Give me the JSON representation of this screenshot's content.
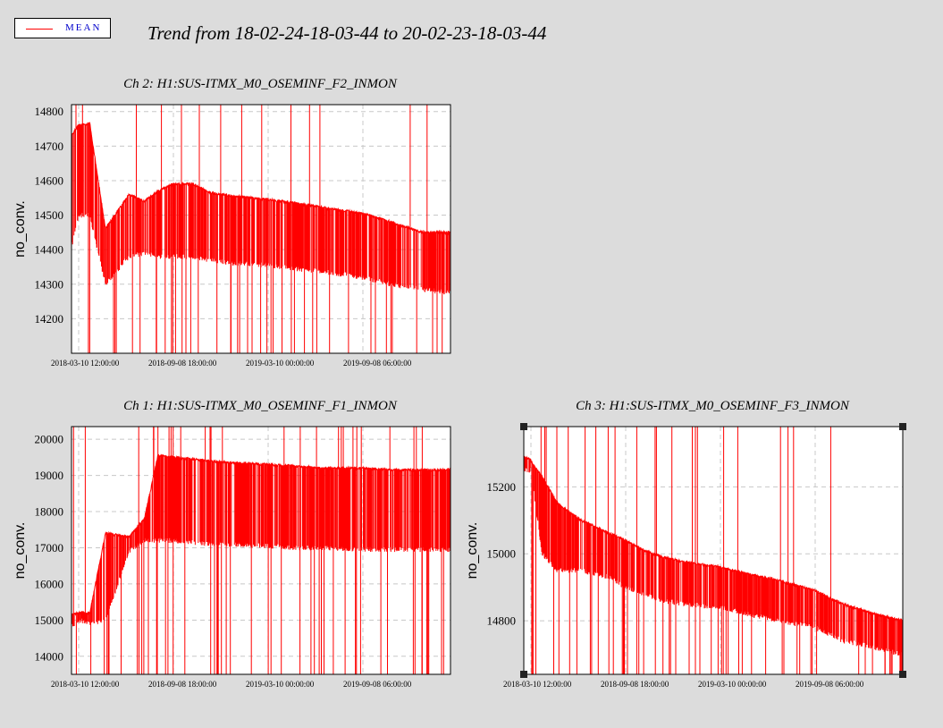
{
  "title": "Trend from 18-02-24-18-03-44 to 20-02-23-18-03-44",
  "legend": {
    "label": "MEAN",
    "color": "#ff0000"
  },
  "colors": {
    "series": "#ff0000",
    "background": "#dcdcdc",
    "plot_bg": "#ffffff",
    "grid": "#c8c8c8"
  },
  "chart_data": [
    {
      "type": "line",
      "title": "Ch 2: H1:SUS-ITMX_M0_OSEMINF_F2_INMON",
      "ylabel": "no_conv.",
      "xticks": [
        "2018-03-10 12:00:00",
        "2018-09-08 18:00:00",
        "2019-03-10 00:00:00",
        "2019-09-08 06:00:00"
      ],
      "xlim": [
        "2018-02-24 18:03:44",
        "2020-02-23 18:03:44"
      ],
      "yticks": [
        14200,
        14300,
        14400,
        14500,
        14600,
        14700,
        14800
      ],
      "ylim": [
        14100,
        14820
      ],
      "grid": true,
      "series": [
        {
          "name": "MEAN",
          "x": [
            "2018-02-24",
            "2018-03-10",
            "2018-04-01",
            "2018-05-01",
            "2018-06-15",
            "2018-07-15",
            "2018-08-10",
            "2018-09-08",
            "2018-10-15",
            "2018-11-20",
            "2019-01-01",
            "2019-03-10",
            "2019-05-01",
            "2019-07-01",
            "2019-09-08",
            "2019-11-01",
            "2020-01-01",
            "2020-02-23"
          ],
          "y": [
            14730,
            14760,
            14765,
            14460,
            14560,
            14540,
            14570,
            14590,
            14590,
            14565,
            14555,
            14545,
            14535,
            14520,
            14505,
            14480,
            14450,
            14450
          ],
          "low": [
            14400,
            14500,
            14500,
            14300,
            14380,
            14390,
            14380,
            14380,
            14380,
            14370,
            14360,
            14355,
            14345,
            14335,
            14320,
            14300,
            14285,
            14275
          ]
        }
      ]
    },
    {
      "type": "line",
      "title": "Ch 1: H1:SUS-ITMX_M0_OSEMINF_F1_INMON",
      "ylabel": "no_conv.",
      "xticks": [
        "2018-03-10 12:00:00",
        "2018-09-08 18:00:00",
        "2019-03-10 00:00:00",
        "2019-09-08 06:00:00"
      ],
      "xlim": [
        "2018-02-24 18:03:44",
        "2020-02-23 18:03:44"
      ],
      "yticks": [
        14000,
        15000,
        16000,
        17000,
        18000,
        19000,
        20000
      ],
      "ylim": [
        13500,
        20350
      ],
      "grid": true,
      "series": [
        {
          "name": "MEAN",
          "x": [
            "2018-02-24",
            "2018-03-10",
            "2018-04-01",
            "2018-05-01",
            "2018-06-15",
            "2018-07-15",
            "2018-08-10",
            "2018-09-08",
            "2018-10-15",
            "2018-11-20",
            "2019-01-01",
            "2019-03-10",
            "2019-05-01",
            "2019-07-01",
            "2019-09-08",
            "2019-11-01",
            "2020-01-01",
            "2020-02-23"
          ],
          "y": [
            15150,
            15200,
            15200,
            17400,
            17300,
            17800,
            19550,
            19500,
            19450,
            19400,
            19350,
            19300,
            19250,
            19200,
            19200,
            19150,
            19150,
            19150
          ],
          "low": [
            14800,
            15000,
            14900,
            15000,
            16900,
            17200,
            17200,
            17200,
            17150,
            17100,
            17100,
            17050,
            17000,
            17000,
            16950,
            16950,
            16950,
            16950
          ]
        }
      ]
    },
    {
      "type": "line",
      "title": "Ch 3: H1:SUS-ITMX_M0_OSEMINF_F3_INMON",
      "ylabel": "no_conv.",
      "xticks": [
        "2018-03-10 12:00:00",
        "2018-09-08 18:00:00",
        "2019-03-10 00:00:00",
        "2019-09-08 06:00:00"
      ],
      "xlim": [
        "2018-02-24 18:03:44",
        "2020-02-23 18:03:44"
      ],
      "yticks": [
        14800,
        15000,
        15200
      ],
      "ylim": [
        14640,
        15380
      ],
      "grid": true,
      "series": [
        {
          "name": "MEAN",
          "x": [
            "2018-02-24",
            "2018-03-10",
            "2018-04-01",
            "2018-05-01",
            "2018-06-15",
            "2018-07-15",
            "2018-08-10",
            "2018-09-08",
            "2018-10-15",
            "2018-11-20",
            "2019-01-01",
            "2019-03-10",
            "2019-05-01",
            "2019-07-01",
            "2019-09-08",
            "2019-11-01",
            "2020-01-01",
            "2020-02-23"
          ],
          "y": [
            15290,
            15280,
            15230,
            15150,
            15100,
            15080,
            15060,
            15040,
            15010,
            14990,
            14975,
            14960,
            14940,
            14920,
            14890,
            14850,
            14820,
            14800
          ],
          "low": [
            15250,
            15250,
            15000,
            14950,
            14950,
            14940,
            14930,
            14900,
            14880,
            14860,
            14850,
            14840,
            14820,
            14800,
            14780,
            14740,
            14720,
            14700
          ]
        }
      ]
    }
  ]
}
